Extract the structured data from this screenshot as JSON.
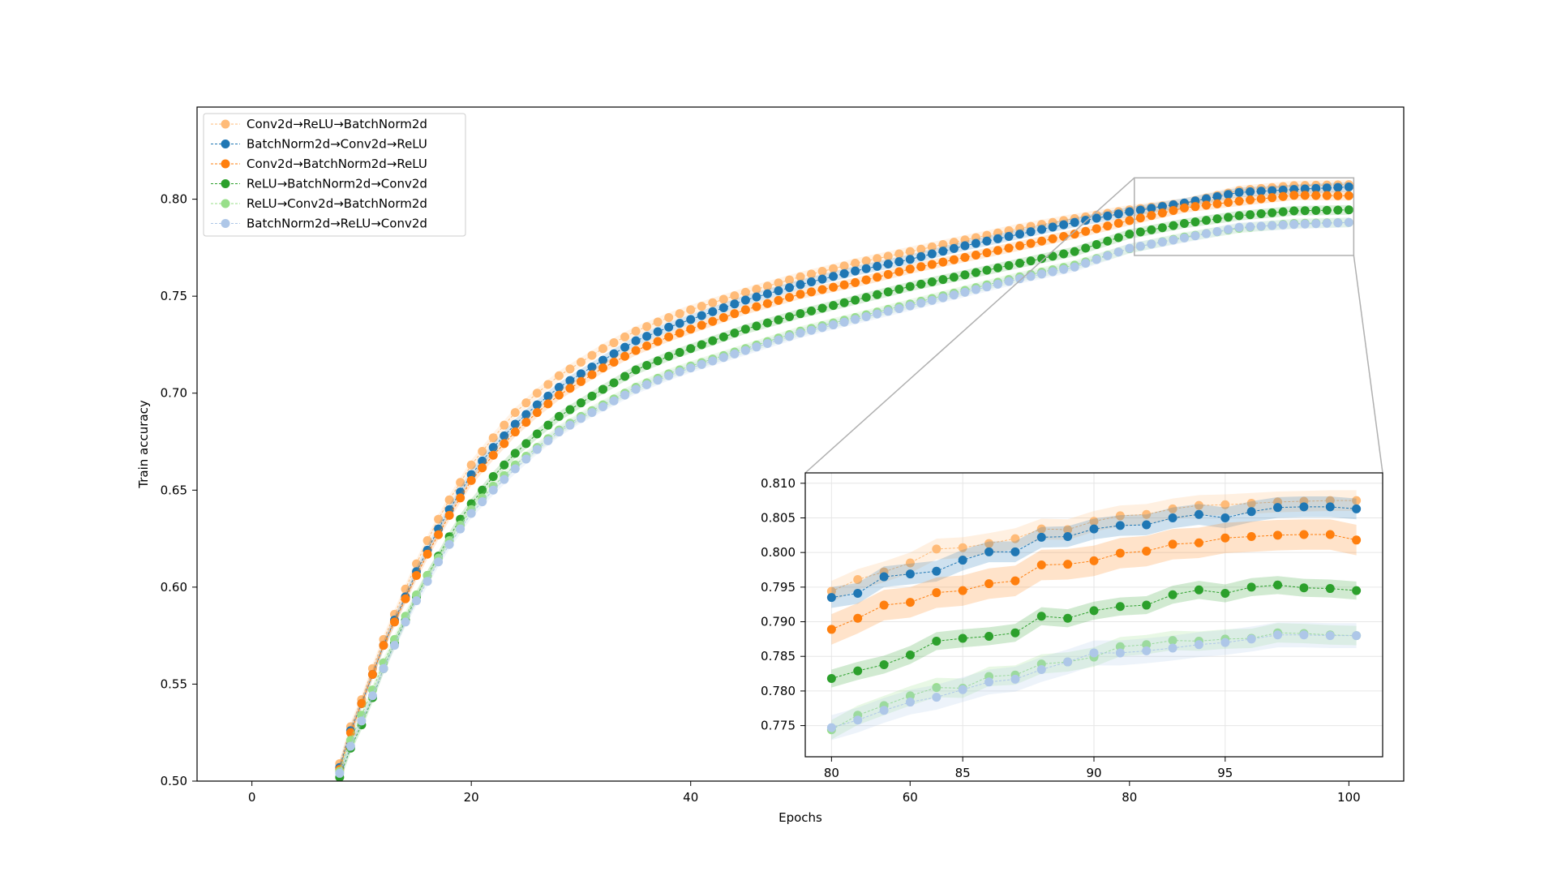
{
  "chart_data": [
    {
      "type": "line",
      "role": "main",
      "xlabel": "Epochs",
      "ylabel": "Train accuracy",
      "xlim": [
        -5,
        105
      ],
      "ylim": [
        0.5,
        0.8475
      ],
      "xticks": [
        0,
        20,
        40,
        60,
        80,
        100
      ],
      "yticks": [
        0.5,
        0.55,
        0.6,
        0.65,
        0.7,
        0.75,
        0.8
      ],
      "grid": false,
      "legend": "top-left",
      "series": [
        {
          "name": "Conv2d→ReLU→BatchNorm2d",
          "color": "#ffbb78",
          "style": "dashed"
        },
        {
          "name": "BatchNorm2d→Conv2d→ReLU",
          "color": "#1f77b4",
          "style": "dashed"
        },
        {
          "name": "Conv2d→BatchNorm2d→ReLU",
          "color": "#ff7f0e",
          "style": "dashed"
        },
        {
          "name": "ReLU→BatchNorm2d→Conv2d",
          "color": "#2ca02c",
          "style": "dashed"
        },
        {
          "name": "ReLU→Conv2d→BatchNorm2d",
          "color": "#98df8a",
          "style": "dashed"
        },
        {
          "name": "BatchNorm2d→ReLU→Conv2d",
          "color": "#aec7e8",
          "style": "dashed"
        }
      ],
      "anchors_x": [
        8,
        9,
        10,
        11,
        12,
        13,
        14,
        15,
        16,
        17,
        18,
        19,
        20,
        22,
        24,
        26,
        28,
        30,
        32,
        35,
        38,
        40,
        45,
        50,
        55,
        60,
        65,
        70,
        75,
        80,
        85,
        90,
        95,
        100
      ],
      "anchors_y": [
        [
          0.509,
          0.528,
          0.542,
          0.558,
          0.573,
          0.586,
          0.599,
          0.612,
          0.624,
          0.635,
          0.645,
          0.654,
          0.663,
          0.677,
          0.69,
          0.7,
          0.709,
          0.716,
          0.723,
          0.732,
          0.739,
          0.743,
          0.752,
          0.76,
          0.767,
          0.773,
          0.779,
          0.785,
          0.79,
          0.7945,
          0.798,
          0.8045,
          0.807,
          0.8075
        ],
        [
          0.507,
          0.526,
          0.54,
          0.555,
          0.57,
          0.583,
          0.595,
          0.608,
          0.619,
          0.63,
          0.64,
          0.649,
          0.658,
          0.672,
          0.684,
          0.694,
          0.703,
          0.71,
          0.717,
          0.727,
          0.734,
          0.738,
          0.748,
          0.756,
          0.763,
          0.769,
          0.776,
          0.782,
          0.788,
          0.7935,
          0.798,
          0.8035,
          0.805,
          0.8063
        ],
        [
          0.506,
          0.525,
          0.54,
          0.555,
          0.57,
          0.582,
          0.594,
          0.606,
          0.617,
          0.627,
          0.637,
          0.646,
          0.655,
          0.668,
          0.68,
          0.69,
          0.699,
          0.706,
          0.713,
          0.722,
          0.729,
          0.733,
          0.743,
          0.751,
          0.757,
          0.764,
          0.77,
          0.776,
          0.782,
          0.789,
          0.7955,
          0.799,
          0.802,
          0.8018
        ],
        [
          0.502,
          0.517,
          0.529,
          0.543,
          0.558,
          0.571,
          0.583,
          0.595,
          0.606,
          0.616,
          0.626,
          0.635,
          0.643,
          0.657,
          0.669,
          0.679,
          0.688,
          0.695,
          0.702,
          0.712,
          0.719,
          0.723,
          0.733,
          0.741,
          0.748,
          0.755,
          0.761,
          0.767,
          0.773,
          0.782,
          0.7875,
          0.7915,
          0.794,
          0.7945
        ],
        [
          0.505,
          0.521,
          0.534,
          0.547,
          0.561,
          0.573,
          0.585,
          0.596,
          0.606,
          0.615,
          0.624,
          0.632,
          0.64,
          0.652,
          0.663,
          0.672,
          0.681,
          0.688,
          0.694,
          0.703,
          0.71,
          0.714,
          0.723,
          0.732,
          0.739,
          0.746,
          0.753,
          0.76,
          0.766,
          0.7745,
          0.7805,
          0.785,
          0.7875,
          0.788
        ],
        [
          0.504,
          0.518,
          0.531,
          0.544,
          0.558,
          0.57,
          0.582,
          0.593,
          0.603,
          0.613,
          0.622,
          0.63,
          0.638,
          0.65,
          0.661,
          0.671,
          0.68,
          0.687,
          0.693,
          0.702,
          0.709,
          0.713,
          0.722,
          0.731,
          0.738,
          0.745,
          0.752,
          0.759,
          0.765,
          0.7747,
          0.78,
          0.7855,
          0.787,
          0.788
        ]
      ],
      "zoom_region": {
        "x": [
          80,
          100
        ],
        "y": [
          0.771,
          0.811
        ]
      }
    },
    {
      "type": "line",
      "role": "inset",
      "xlim": [
        79,
        101
      ],
      "ylim": [
        0.7705,
        0.8115
      ],
      "xticks": [
        80,
        85,
        90,
        95
      ],
      "yticks": [
        0.775,
        0.78,
        0.785,
        0.79,
        0.795,
        0.8,
        0.805,
        0.81
      ],
      "grid": true,
      "x": [
        80,
        81,
        82,
        83,
        84,
        85,
        86,
        87,
        88,
        89,
        90,
        91,
        92,
        93,
        94,
        95,
        96,
        97,
        98,
        99,
        100
      ],
      "series": [
        {
          "name": "Conv2d→ReLU→BatchNorm2d",
          "color": "#ffbb78",
          "band": 0.0015,
          "values": [
            0.7944,
            0.7961,
            0.7972,
            0.7985,
            0.8005,
            0.8007,
            0.8013,
            0.802,
            0.8034,
            0.8033,
            0.8045,
            0.8053,
            0.8055,
            0.8063,
            0.8068,
            0.8069,
            0.8071,
            0.8073,
            0.8074,
            0.8075,
            0.8075
          ]
        },
        {
          "name": "BatchNorm2d→Conv2d→ReLU",
          "color": "#1f77b4",
          "band": 0.0015,
          "values": [
            0.7935,
            0.7941,
            0.7965,
            0.7969,
            0.7973,
            0.7989,
            0.8001,
            0.8001,
            0.8022,
            0.8023,
            0.8034,
            0.8039,
            0.804,
            0.805,
            0.8055,
            0.805,
            0.8059,
            0.8065,
            0.8066,
            0.8066,
            0.8063
          ]
        },
        {
          "name": "Conv2d→BatchNorm2d→ReLU",
          "color": "#ff7f0e",
          "band": 0.0022,
          "values": [
            0.7889,
            0.7905,
            0.7924,
            0.7928,
            0.7942,
            0.7945,
            0.7955,
            0.7959,
            0.7982,
            0.7983,
            0.7988,
            0.7999,
            0.8002,
            0.8012,
            0.8014,
            0.8021,
            0.8023,
            0.8025,
            0.8026,
            0.8026,
            0.8018
          ]
        },
        {
          "name": "ReLU→BatchNorm2d→Conv2d",
          "color": "#2ca02c",
          "band": 0.0013,
          "values": [
            0.7818,
            0.7829,
            0.7838,
            0.7852,
            0.7872,
            0.7876,
            0.7879,
            0.7884,
            0.7908,
            0.7905,
            0.7916,
            0.7922,
            0.7924,
            0.7939,
            0.7946,
            0.7941,
            0.795,
            0.7953,
            0.7949,
            0.7948,
            0.7945
          ]
        },
        {
          "name": "ReLU→Conv2d→BatchNorm2d",
          "color": "#98df8a",
          "band": 0.0014,
          "values": [
            0.7744,
            0.7765,
            0.7779,
            0.7793,
            0.7805,
            0.7804,
            0.7821,
            0.7823,
            0.7839,
            0.7842,
            0.7849,
            0.7864,
            0.7867,
            0.7873,
            0.7872,
            0.7875,
            0.7876,
            0.7884,
            0.7883,
            0.7881,
            0.788
          ]
        },
        {
          "name": "BatchNorm2d→ReLU→Conv2d",
          "color": "#aec7e8",
          "band": 0.0018,
          "values": [
            0.7747,
            0.7758,
            0.7772,
            0.7784,
            0.7791,
            0.7802,
            0.7813,
            0.7817,
            0.7831,
            0.7842,
            0.7855,
            0.7855,
            0.7858,
            0.7862,
            0.7867,
            0.787,
            0.7875,
            0.7881,
            0.7881,
            0.788,
            0.788
          ]
        }
      ]
    }
  ]
}
